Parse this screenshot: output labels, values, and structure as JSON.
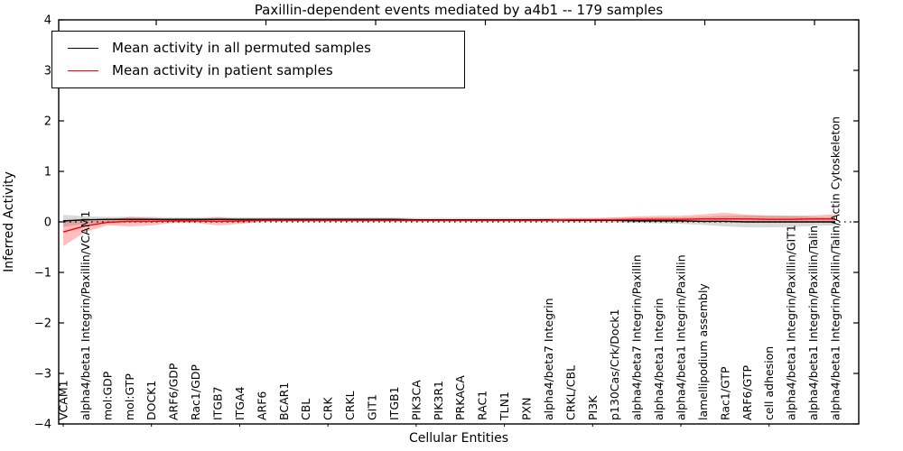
{
  "chart_data": {
    "type": "line",
    "title": "Paxillin-dependent events mediated by a4b1 -- 179 samples",
    "xlabel": "Cellular Entities",
    "ylabel": "Inferred Activity",
    "ylim": [
      -4,
      4
    ],
    "yticks": [
      "4",
      "3",
      "2",
      "1",
      "0",
      "−1",
      "−2",
      "−3",
      "−4"
    ],
    "grid": false,
    "legend_position": "upper left",
    "zero_line_style": "dotted",
    "categories": [
      "VCAM1",
      "alpha4/beta1 Integrin/Paxillin/VCAM1",
      "mol:GDP",
      "mol:GTP",
      "DOCK1",
      "ARF6/GDP",
      "Rac1/GDP",
      "ITGB7",
      "ITGA4",
      "ARF6",
      "BCAR1",
      "CBL",
      "CRK",
      "CRKL",
      "GIT1",
      "ITGB1",
      "PIK3CA",
      "PIK3R1",
      "PRKACA",
      "RAC1",
      "TLN1",
      "PXN",
      "alpha4/beta7 Integrin",
      "CRKL/CBL",
      "PI3K",
      "p130Cas/Crk/Dock1",
      "alpha4/beta7 Integrin/Paxillin",
      "alpha4/beta1 Integrin",
      "alpha4/beta1 Integrin/Paxillin",
      "lamellipodium assembly",
      "Rac1/GTP",
      "ARF6/GTP",
      "cell adhesion",
      "alpha4/beta1 Integrin/Paxillin/GIT1",
      "alpha4/beta1 Integrin/Paxillin/Talin",
      "alpha4/beta1 Integrin/Paxillin/Talin/Actin Cytoskeleton"
    ],
    "series": [
      {
        "name": "Mean activity in all permuted samples",
        "color": "#000000",
        "band_color": "rgba(0,0,0,0.15)",
        "values": [
          0.02,
          0.04,
          0.05,
          0.05,
          0.05,
          0.05,
          0.05,
          0.05,
          0.05,
          0.05,
          0.05,
          0.05,
          0.05,
          0.05,
          0.05,
          0.05,
          0.04,
          0.04,
          0.04,
          0.04,
          0.04,
          0.04,
          0.04,
          0.03,
          0.03,
          0.03,
          0.02,
          0.02,
          0.02,
          0.01,
          0.01,
          0.0,
          0.0,
          0.0,
          0.0,
          0.0
        ],
        "band_high": [
          0.14,
          0.11,
          0.1,
          0.1,
          0.1,
          0.09,
          0.09,
          0.1,
          0.09,
          0.09,
          0.09,
          0.09,
          0.09,
          0.09,
          0.09,
          0.09,
          0.08,
          0.08,
          0.08,
          0.08,
          0.08,
          0.08,
          0.08,
          0.08,
          0.08,
          0.08,
          0.08,
          0.09,
          0.09,
          0.1,
          0.12,
          0.13,
          0.13,
          0.12,
          0.1,
          0.09
        ],
        "band_low": [
          -0.1,
          -0.04,
          -0.01,
          -0.01,
          -0.01,
          0.0,
          0.0,
          -0.01,
          -0.01,
          0.0,
          0.0,
          0.0,
          0.0,
          0.0,
          0.0,
          0.0,
          0.0,
          0.0,
          0.0,
          0.0,
          0.0,
          0.0,
          0.0,
          -0.01,
          -0.01,
          -0.01,
          -0.02,
          -0.03,
          -0.04,
          -0.06,
          -0.09,
          -0.11,
          -0.11,
          -0.1,
          -0.08,
          -0.07
        ]
      },
      {
        "name": "Mean activity in patient samples",
        "color": "#ff0000",
        "band_color": "rgba(255,0,0,0.25)",
        "values": [
          -0.2,
          -0.08,
          -0.01,
          0.01,
          0.01,
          0.02,
          0.02,
          0.01,
          0.02,
          0.03,
          0.03,
          0.03,
          0.03,
          0.03,
          0.03,
          0.03,
          0.03,
          0.03,
          0.03,
          0.03,
          0.03,
          0.03,
          0.03,
          0.04,
          0.04,
          0.04,
          0.05,
          0.05,
          0.05,
          0.06,
          0.06,
          0.06,
          0.05,
          0.05,
          0.06,
          0.06
        ],
        "band_high": [
          0.02,
          0.01,
          0.04,
          0.1,
          0.08,
          0.05,
          0.05,
          0.09,
          0.06,
          0.05,
          0.05,
          0.05,
          0.05,
          0.05,
          0.05,
          0.05,
          0.05,
          0.05,
          0.05,
          0.05,
          0.05,
          0.05,
          0.06,
          0.07,
          0.07,
          0.09,
          0.11,
          0.12,
          0.12,
          0.15,
          0.18,
          0.14,
          0.12,
          0.12,
          0.13,
          0.15
        ],
        "band_low": [
          -0.48,
          -0.2,
          -0.07,
          -0.09,
          -0.07,
          -0.02,
          -0.02,
          -0.07,
          -0.04,
          0.0,
          0.01,
          0.01,
          0.01,
          0.01,
          0.01,
          0.01,
          0.01,
          0.01,
          0.01,
          0.01,
          0.01,
          0.01,
          0.01,
          0.01,
          0.01,
          0.01,
          0.02,
          0.02,
          0.02,
          0.02,
          0.02,
          0.02,
          0.02,
          0.02,
          0.02,
          0.02
        ]
      }
    ]
  }
}
